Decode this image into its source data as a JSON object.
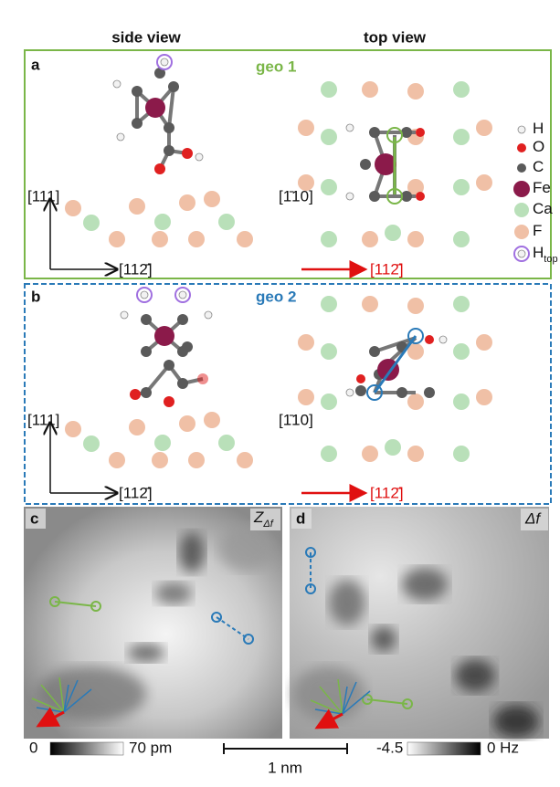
{
  "header": {
    "side_view": "side view",
    "top_view": "top view"
  },
  "panels": [
    {
      "label": "a",
      "title": "geo 1",
      "axes": {
        "side_vertical": "[111]",
        "side_horizontal": "[112̄]",
        "top_vertical": "[1̄10]",
        "top_horizontal": "[112̄]"
      }
    },
    {
      "label": "b",
      "title": "geo 2",
      "axes": {
        "side_vertical": "[111]",
        "side_horizontal": "[112̄]",
        "top_vertical": "[1̄10]",
        "top_horizontal": "[112̄]"
      }
    },
    {
      "label": "c",
      "channel": {
        "symbol": "Z",
        "subscript": "Δf"
      }
    },
    {
      "label": "d",
      "channel": {
        "symbol": "Δf"
      }
    }
  ],
  "legend": [
    {
      "label": "H"
    },
    {
      "label": "O"
    },
    {
      "label": "C"
    },
    {
      "label": "Fe"
    },
    {
      "label": "Ca"
    },
    {
      "label": "F"
    },
    {
      "label": "H",
      "subscript": "top"
    }
  ],
  "colorbars": [
    {
      "min_label": "0",
      "max_label": "70 pm"
    },
    {
      "min_label": "-4.5",
      "max_label": "0 Hz"
    }
  ],
  "scale_bar": "1 nm"
}
